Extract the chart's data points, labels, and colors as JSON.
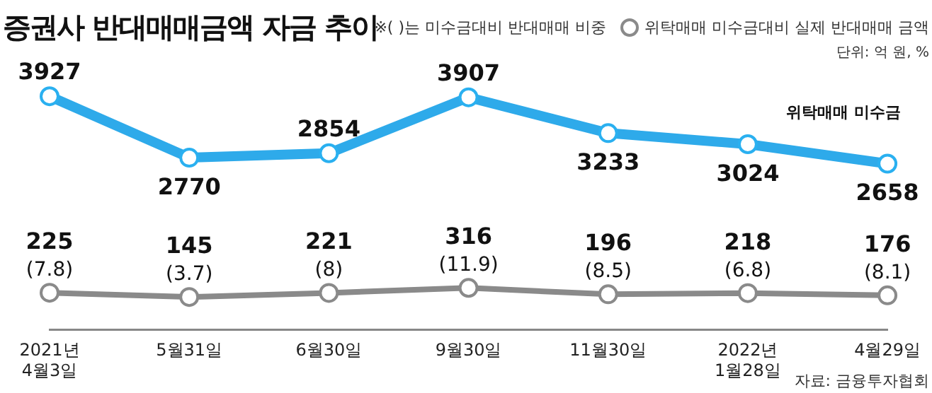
{
  "chart_data": {
    "type": "line",
    "title": "증권사 반대매매금액 자금 추이",
    "categories": [
      "2021년\n4월3일",
      "5월31일",
      "6월30일",
      "9월30일",
      "11월30일",
      "2022년\n1월28일",
      "4월29일"
    ],
    "series": [
      {
        "name": "위탁매매 미수금",
        "color": "#2eaaea",
        "values": [
          3927,
          2770,
          2854,
          3907,
          3233,
          3024,
          2658
        ]
      },
      {
        "name": "위탁매매 미수금대비 실제 반대매매 금액",
        "color": "#8a8a8a",
        "values": [
          225,
          145,
          221,
          316,
          196,
          218,
          176
        ],
        "value_labels": [
          "225\n(7.8)",
          "145\n(3.7)",
          "221\n(8)",
          "316\n(11.9)",
          "196\n(8.5)",
          "218\n(6.8)",
          "176\n(8.1)"
        ]
      }
    ],
    "tick_labels": "x",
    "grid": false,
    "legend": "top right",
    "marker": "circle",
    "line_style": "solid",
    "data_labels": true,
    "annotations": [
      "※( )는 미수금대비 반대매매 비중",
      "단위: 억 원, %",
      "자료: 금융투자협회"
    ]
  }
}
